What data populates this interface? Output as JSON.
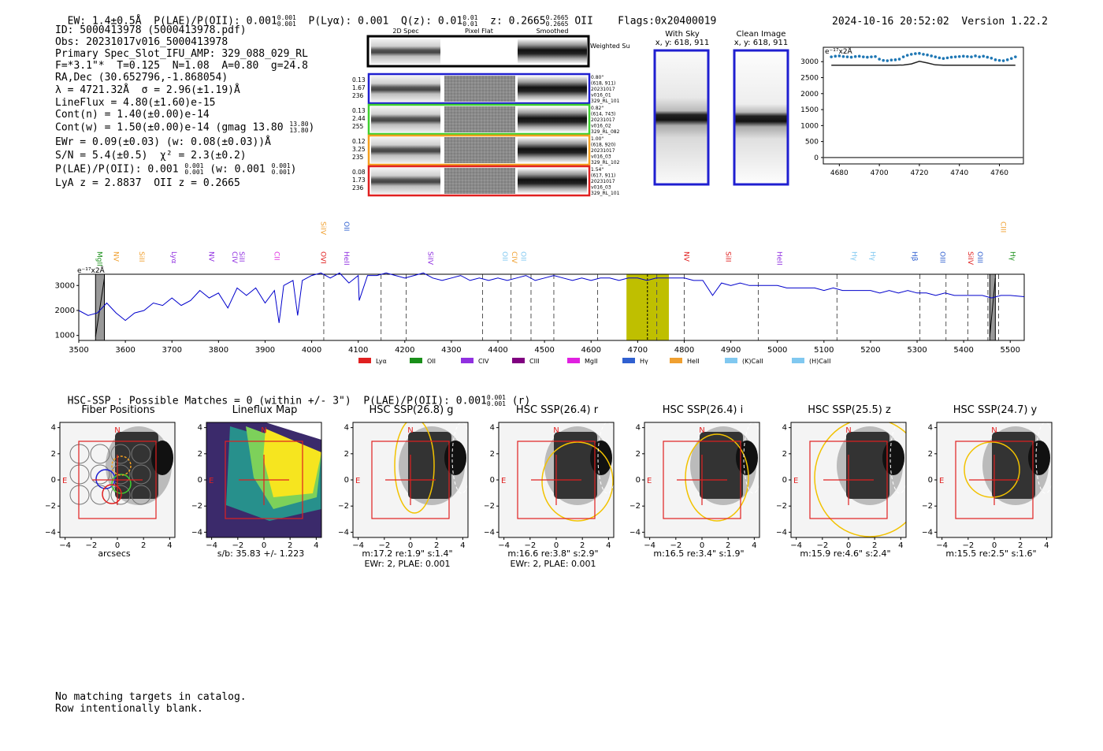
{
  "header": {
    "ew": "EW: 1.4±0.5Å",
    "plae_label": "P(LAE)/P(OII): 0.001",
    "plae_sup": "0.001",
    "plae_sub": "0.001",
    "plya": "P(Lyα): 0.001",
    "qz_label": "Q(z): 0.01",
    "qz_sup": "0.01",
    "qz_sub": "0.01",
    "z_label": "z: 0.2665",
    "z_sup": "0.2665",
    "z_sub": "0.2665",
    "z_line": "OII",
    "flags": "Flags:0x20400019",
    "timestamp": "2024-10-16 20:52:02",
    "version": "Version 1.22.2"
  },
  "info": {
    "id": "ID: 5000413978 (5000413978.pdf)",
    "obs": "Obs: 20231017v016_5000413978",
    "primary": "Primary Spec_Slot_IFU_AMP: 329_088_029_RL",
    "params": "F=*3.1\"*  T=0.125  N=1.08  A=0.80  g=24.8",
    "radec": "RA,Dec (30.652796,-1.868054)",
    "lambda": "λ = 4721.32Å  σ = 2.96(±1.19)Å",
    "lineflux": "LineFlux = 4.80(±1.60)e-15",
    "contn": "Cont(n) = 1.40(±0.00)e-14",
    "contw": "Cont(w) = 1.50(±0.00)e-14 (gmag 13.80",
    "contw_sup": "13.80",
    "contw_sub": "13.80",
    "ewr": "EWr = 0.09(±0.03) (w: 0.08(±0.03))Å",
    "sn": "S/N = 5.4(±0.5)  χ² = 2.3(±0.2)",
    "plae2": "P(LAE)/P(OII): 0.001",
    "plae2_sup": "0.001",
    "plae2_sub": "0.001",
    "plae2_w": "(w: 0.001",
    "plae2_w_sup": "0.001",
    "plae2_w_sub": "0.001",
    "lyaz": "LyA z = 2.8837  OII z = 0.2665"
  },
  "cutouts": {
    "headers": [
      "2D Spec",
      "Pixel Flat",
      "Smoothed"
    ],
    "weighted_sum": "Weighted Sum",
    "rows": [
      {
        "color": "#1f1fd0",
        "left": [
          "0.13",
          "1.67",
          "236"
        ],
        "right": [
          "0.80\"",
          "(618, 911)",
          "20231017",
          "v016_01",
          "329_RL_101"
        ]
      },
      {
        "color": "#3fcf2f",
        "left": [
          "0.13",
          "2.44",
          "255"
        ],
        "right": [
          "0.82\"",
          "(614, 743)",
          "20231017",
          "v016_02",
          "329_RL_082"
        ]
      },
      {
        "color": "#f4a020",
        "left": [
          "0.12",
          "3.25",
          "235"
        ],
        "right": [
          "1.00\"",
          "(618, 920)",
          "20231017",
          "v016_03",
          "329_RL_102"
        ]
      },
      {
        "color": "#e02020",
        "left": [
          "0.08",
          "1.73",
          "236"
        ],
        "right": [
          "1.54\"",
          "(617, 911)",
          "20231017",
          "v016_03",
          "329_RL_101"
        ]
      }
    ]
  },
  "sky": {
    "with_sky_title": "With Sky",
    "with_sky_coords": "x, y: 618, 911",
    "clean_title": "Clean Image",
    "clean_coords": "x, y: 618, 911"
  },
  "zoom_plot": {
    "ylabel": "e⁻¹⁷x2Å",
    "yticks": [
      "3000",
      "2500",
      "2000",
      "1500",
      "1000",
      "500",
      "0"
    ],
    "xticks": [
      "4680",
      "4700",
      "4720",
      "4740",
      "4760"
    ]
  },
  "chart_data": [
    {
      "type": "line",
      "ylabel": "e⁻¹⁷x2Å",
      "x_range": [
        4672,
        4772
      ],
      "ylim": [
        -200,
        3450
      ],
      "series": [
        {
          "name": "",
          "style": "points",
          "color": "#1f77b4",
          "x": [
            4676,
            4678,
            4680,
            4682,
            4684,
            4686,
            4688,
            4690,
            4692,
            4694,
            4696,
            4698,
            4700,
            4702,
            4704,
            4706,
            4708,
            4710,
            4712,
            4714,
            4716,
            4718,
            4720,
            4722,
            4724,
            4726,
            4728,
            4730,
            4732,
            4734,
            4736,
            4738,
            4740,
            4742,
            4744,
            4746,
            4748,
            4750,
            4752,
            4754,
            4756,
            4758,
            4760,
            4762,
            4764,
            4766,
            4768
          ],
          "y": [
            3150,
            3170,
            3180,
            3160,
            3150,
            3140,
            3160,
            3170,
            3150,
            3140,
            3150,
            3160,
            3080,
            3040,
            3030,
            3050,
            3060,
            3080,
            3150,
            3200,
            3230,
            3250,
            3260,
            3230,
            3210,
            3180,
            3150,
            3120,
            3100,
            3120,
            3140,
            3150,
            3160,
            3170,
            3160,
            3150,
            3180,
            3150,
            3170,
            3140,
            3110,
            3060,
            3040,
            3030,
            3060,
            3100,
            3150
          ]
        },
        {
          "name": "",
          "style": "line",
          "color": "#222222",
          "x": [
            4676,
            4700,
            4708,
            4712,
            4716,
            4720,
            4724,
            4728,
            4732,
            4740,
            4768
          ],
          "y": [
            2890,
            2890,
            2890,
            2895,
            2930,
            3010,
            2960,
            2900,
            2890,
            2890,
            2890
          ]
        },
        {
          "name": "",
          "style": "line",
          "color": "#555555",
          "x": [
            4672,
            4772
          ],
          "y": [
            0,
            0
          ]
        }
      ]
    },
    {
      "type": "line",
      "ylabel": "e⁻¹⁷x2Å",
      "x_range": [
        3500,
        5530
      ],
      "ylim": [
        800,
        3450
      ],
      "yticks": [
        "1000",
        "2000",
        "3000"
      ],
      "xticks": [
        "3500",
        "3600",
        "3700",
        "3800",
        "3900",
        "4000",
        "4100",
        "4200",
        "4300",
        "4400",
        "4500",
        "4600",
        "4700",
        "4800",
        "4900",
        "5000",
        "5100",
        "5200",
        "5300",
        "5400",
        "5500"
      ],
      "series": [
        {
          "name": "",
          "color": "#0000cc",
          "x": [
            3500,
            3520,
            3540,
            3560,
            3580,
            3600,
            3620,
            3640,
            3660,
            3680,
            3700,
            3720,
            3740,
            3760,
            3780,
            3800,
            3820,
            3840,
            3860,
            3880,
            3900,
            3920,
            3930,
            3940,
            3960,
            3970,
            3980,
            4000,
            4020,
            4040,
            4060,
            4080,
            4100,
            4102,
            4120,
            4140,
            4160,
            4180,
            4200,
            4220,
            4240,
            4260,
            4280,
            4300,
            4320,
            4340,
            4360,
            4380,
            4400,
            4420,
            4440,
            4460,
            4480,
            4500,
            4520,
            4540,
            4560,
            4580,
            4600,
            4620,
            4640,
            4660,
            4680,
            4700,
            4720,
            4740,
            4760,
            4780,
            4800,
            4820,
            4840,
            4861,
            4880,
            4900,
            4920,
            4940,
            4960,
            4980,
            5000,
            5020,
            5040,
            5060,
            5080,
            5100,
            5120,
            5140,
            5160,
            5180,
            5200,
            5220,
            5240,
            5260,
            5280,
            5300,
            5320,
            5340,
            5360,
            5380,
            5400,
            5420,
            5440,
            5460,
            5480,
            5500,
            5530
          ],
          "y": [
            2000,
            1800,
            1900,
            2300,
            1900,
            1600,
            1900,
            2000,
            2300,
            2200,
            2500,
            2200,
            2400,
            2800,
            2500,
            2700,
            2100,
            2900,
            2600,
            2900,
            2300,
            2800,
            1500,
            3000,
            3200,
            1800,
            3200,
            3400,
            3500,
            3300,
            3500,
            3100,
            3400,
            2400,
            3400,
            3400,
            3500,
            3400,
            3300,
            3400,
            3500,
            3300,
            3200,
            3300,
            3400,
            3200,
            3300,
            3200,
            3300,
            3200,
            3300,
            3400,
            3200,
            3300,
            3400,
            3300,
            3200,
            3300,
            3200,
            3300,
            3300,
            3200,
            3300,
            3300,
            3200,
            3300,
            3300,
            3300,
            3300,
            3200,
            3200,
            2600,
            3100,
            3000,
            3100,
            3000,
            3000,
            3000,
            3000,
            2900,
            2900,
            2900,
            2900,
            2800,
            2900,
            2800,
            2800,
            2800,
            2800,
            2700,
            2800,
            2700,
            2800,
            2700,
            2700,
            2600,
            2700,
            2600,
            2600,
            2600,
            2600,
            2500,
            2600,
            2600,
            2550
          ]
        }
      ],
      "features": {
        "gray_bands": [
          [
            3536,
            3555
          ],
          [
            5456,
            5468
          ]
        ],
        "highlight_band": [
          4676,
          4767
        ],
        "highlight_center": 4721,
        "dashed_lines": [
          4026,
          4149,
          4203,
          4367,
          4428,
          4471,
          4520,
          4614,
          4741,
          4800,
          4959,
          5128,
          5306,
          5362,
          5409,
          5452,
          5475
        ]
      },
      "line_labels": [
        {
          "name": "MgII",
          "x": 3540,
          "color": "#1a8f1a",
          "row": 0
        },
        {
          "name": "NV",
          "x": 3575,
          "color": "#f0a030",
          "row": 0
        },
        {
          "name": "SiII",
          "x": 3630,
          "color": "#f0a030",
          "row": 0
        },
        {
          "name": "Lyα",
          "x": 3700,
          "color": "#9030e0",
          "row": 0
        },
        {
          "name": "NV",
          "x": 3780,
          "color": "#9030e0",
          "row": 0
        },
        {
          "name": "CIV",
          "x": 3830,
          "color": "#9030e0",
          "row": 0
        },
        {
          "name": "SiII",
          "x": 3845,
          "color": "#9030e0",
          "row": 0
        },
        {
          "name": "CII",
          "x": 3920,
          "color": "#e030e0",
          "row": 0
        },
        {
          "name": "OVI",
          "x": 4020,
          "color": "#e02020",
          "row": 0
        },
        {
          "name": "SiIV",
          "x": 4020,
          "color": "#f0a030",
          "row": 1
        },
        {
          "name": "HeII",
          "x": 4070,
          "color": "#9030e0",
          "row": 0
        },
        {
          "name": "OII",
          "x": 4070,
          "color": "#3060d0",
          "row": 1
        },
        {
          "name": "SiIV",
          "x": 4250,
          "color": "#9030e0",
          "row": 0
        },
        {
          "name": "OII",
          "x": 4410,
          "color": "#80c8f0",
          "row": 0
        },
        {
          "name": "CIV",
          "x": 4430,
          "color": "#f0a030",
          "row": 0
        },
        {
          "name": "OII",
          "x": 4450,
          "color": "#80c8f0",
          "row": 0
        },
        {
          "name": "NV",
          "x": 4800,
          "color": "#e02020",
          "row": 0
        },
        {
          "name": "SiII",
          "x": 4890,
          "color": "#e02020",
          "row": 0
        },
        {
          "name": "HeII",
          "x": 5000,
          "color": "#9030e0",
          "row": 0
        },
        {
          "name": "Hγ",
          "x": 5160,
          "color": "#80c8f0",
          "row": 0
        },
        {
          "name": "Hγ",
          "x": 5200,
          "color": "#80c8f0",
          "row": 0
        },
        {
          "name": "Hβ",
          "x": 5290,
          "color": "#3060d0",
          "row": 0
        },
        {
          "name": "OIII",
          "x": 5350,
          "color": "#3060d0",
          "row": 0
        },
        {
          "name": "SiIV",
          "x": 5410,
          "color": "#e02020",
          "row": 0
        },
        {
          "name": "OIII",
          "x": 5430,
          "color": "#3060d0",
          "row": 0
        },
        {
          "name": "CIII",
          "x": 5480,
          "color": "#f0a030",
          "row": 1
        },
        {
          "name": "Hγ",
          "x": 5500,
          "color": "#1a8f1a",
          "row": 0
        }
      ],
      "legend": [
        {
          "name": "Lyα",
          "color": "#e02020"
        },
        {
          "name": "OII",
          "color": "#1a8f1a"
        },
        {
          "name": "CIV",
          "color": "#9030e0"
        },
        {
          "name": "CIII",
          "color": "#800080"
        },
        {
          "name": "MgII",
          "color": "#e020e0"
        },
        {
          "name": "Hγ",
          "color": "#3060d0"
        },
        {
          "name": "HeII",
          "color": "#f0a030"
        },
        {
          "name": "(K)CaII",
          "color": "#80c8f0"
        },
        {
          "name": "(H)CaII",
          "color": "#80c8f0"
        }
      ]
    }
  ],
  "hsc": {
    "summary": "HSC-SSP : Possible Matches = 0 (within +/- 3\")  P(LAE)/P(OII): 0.001",
    "summary_sup": "0.001",
    "summary_sub": "0.001",
    "summary_suffix": "(r)",
    "axis_ticks": [
      "−4",
      "−2",
      "0",
      "2",
      "4"
    ],
    "panels": [
      {
        "title": "Fiber Positions",
        "cap1": "arcsecs",
        "cap2": ""
      },
      {
        "title": "Lineflux Map",
        "cap1": "s/b: 35.83 +/- 1.223",
        "cap2": ""
      },
      {
        "title": "HSC SSP(26.8) g",
        "cap1": "m:17.2  re:1.9\"  s:1.4\"",
        "cap2": "EWr: 2, PLAE: 0.001"
      },
      {
        "title": "HSC SSP(26.4) r",
        "cap1": "m:16.6  re:3.8\"  s:2.9\"",
        "cap2": "EWr: 2, PLAE: 0.001"
      },
      {
        "title": "HSC SSP(26.4) i",
        "cap1": "m:16.5  re:3.4\"  s:1.9\"",
        "cap2": ""
      },
      {
        "title": "HSC SSP(25.5) z",
        "cap1": "m:15.9  re:4.6\"  s:2.4\"",
        "cap2": ""
      },
      {
        "title": "HSC SSP(24.7) y",
        "cap1": "m:15.5  re:2.5\"  s:1.6\"",
        "cap2": ""
      }
    ],
    "north": "N",
    "east": "E"
  },
  "footer": {
    "line1": "No matching targets in catalog.",
    "line2": "Row intentionally blank."
  }
}
